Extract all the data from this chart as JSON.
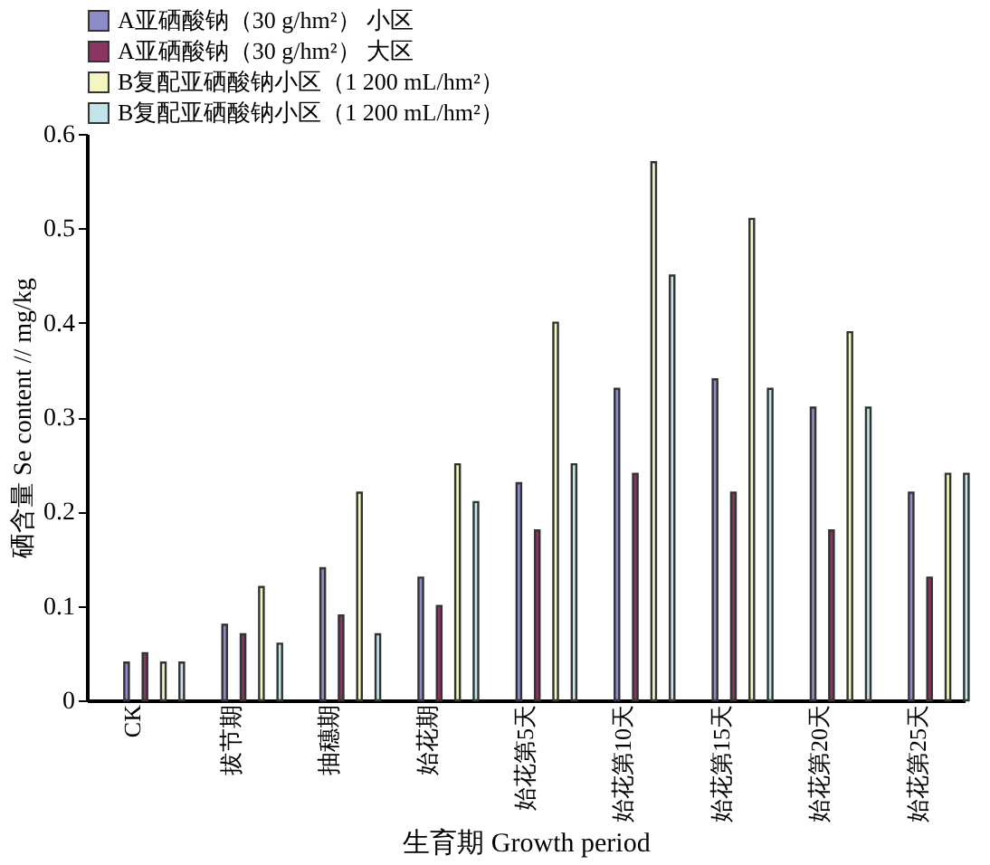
{
  "chart_data": {
    "type": "bar",
    "xlabel": "生育期 Growth period",
    "ylabel": "硒含量 Se content // mg/kg",
    "categories": [
      "CK",
      "拔节期",
      "抽穗期",
      "始花期",
      "始花第5天",
      "始花第10天",
      "始花第15天",
      "始花第20天",
      "始花第25天"
    ],
    "series": [
      {
        "name": "A亚硒酸钠（30 g/hm²） 小区",
        "color": "#8c8cc8",
        "values": [
          0.04,
          0.08,
          0.14,
          0.13,
          0.23,
          0.33,
          0.34,
          0.31,
          0.22
        ]
      },
      {
        "name": "A亚硒酸钠（30 g/hm²） 大区",
        "color": "#8b3563",
        "values": [
          0.05,
          0.07,
          0.09,
          0.1,
          0.18,
          0.24,
          0.22,
          0.18,
          0.13
        ]
      },
      {
        "name": "B复配亚硒酸钠小区（1 200 mL/hm²）",
        "color": "#f5f5c0",
        "values": [
          0.04,
          0.12,
          0.22,
          0.25,
          0.4,
          0.57,
          0.51,
          0.39,
          0.24
        ]
      },
      {
        "name": "B复配亚硒酸钠小区（1 200 mL/hm²）",
        "color": "#c0e4e8",
        "values": [
          0.04,
          0.06,
          0.07,
          0.21,
          0.25,
          0.45,
          0.33,
          0.31,
          0.24
        ]
      }
    ],
    "ylim": [
      0,
      0.6
    ],
    "yticks": [
      0,
      0.1,
      0.2,
      0.3,
      0.4,
      0.5,
      0.6
    ],
    "grid": false,
    "legend": "top left"
  }
}
